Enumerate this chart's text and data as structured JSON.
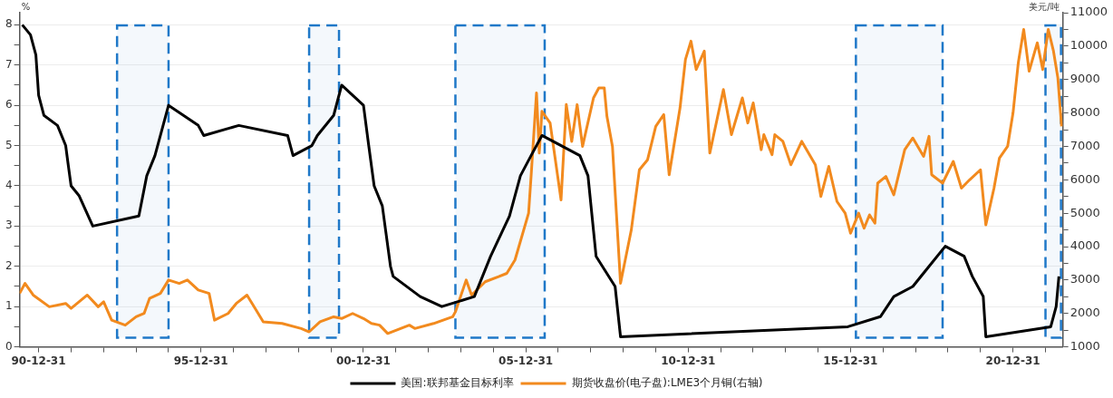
{
  "chart_data": {
    "type": "line",
    "ylabel": "%",
    "y2label": "美元/吨",
    "xlim": [
      "1990-06-01",
      "2022-07-15"
    ],
    "xticks": [
      {
        "value": "1990-12-31",
        "label": "90-12-31"
      },
      {
        "value": "1991-12-31",
        "label": null
      },
      {
        "value": "1992-12-31",
        "label": null
      },
      {
        "value": "1993-12-31",
        "label": null
      },
      {
        "value": "1994-12-31",
        "label": null
      },
      {
        "value": "1995-12-31",
        "label": "95-12-31"
      },
      {
        "value": "1996-12-31",
        "label": null
      },
      {
        "value": "1997-12-31",
        "label": null
      },
      {
        "value": "1998-12-31",
        "label": null
      },
      {
        "value": "1999-12-31",
        "label": null
      },
      {
        "value": "2000-12-31",
        "label": "00-12-31"
      },
      {
        "value": "2001-12-31",
        "label": null
      },
      {
        "value": "2002-12-31",
        "label": null
      },
      {
        "value": "2003-12-31",
        "label": null
      },
      {
        "value": "2004-12-31",
        "label": null
      },
      {
        "value": "2005-12-31",
        "label": "05-12-31"
      },
      {
        "value": "2006-12-31",
        "label": null
      },
      {
        "value": "2007-12-31",
        "label": null
      },
      {
        "value": "2008-12-31",
        "label": null
      },
      {
        "value": "2009-12-31",
        "label": null
      },
      {
        "value": "2010-12-31",
        "label": "10-12-31"
      },
      {
        "value": "2011-12-31",
        "label": null
      },
      {
        "value": "2012-12-31",
        "label": null
      },
      {
        "value": "2013-12-31",
        "label": null
      },
      {
        "value": "2014-12-31",
        "label": null
      },
      {
        "value": "2015-12-31",
        "label": "15-12-31"
      },
      {
        "value": "2016-12-31",
        "label": null
      },
      {
        "value": "2017-12-31",
        "label": null
      },
      {
        "value": "2018-12-31",
        "label": null
      },
      {
        "value": "2019-12-31",
        "label": null
      },
      {
        "value": "2020-12-31",
        "label": "20-12-31"
      },
      {
        "value": "2021-12-31",
        "label": null
      }
    ],
    "ylim": [
      0,
      8.3
    ],
    "yticks": [
      0,
      {
        "value": 0.5,
        "label": null
      },
      1,
      {
        "value": 1.5,
        "label": null
      },
      2,
      {
        "value": 2.5,
        "label": null
      },
      3,
      {
        "value": 3.5,
        "label": null
      },
      4,
      {
        "value": 4.5,
        "label": null
      },
      5,
      {
        "value": 5.5,
        "label": null
      },
      6,
      {
        "value": 6.5,
        "label": null
      },
      7,
      {
        "value": 7.5,
        "label": null
      },
      8
    ],
    "y2lim": [
      1000,
      11000
    ],
    "y2ticks": [
      1000,
      {
        "value": 1500,
        "label": null
      },
      2000,
      {
        "value": 2500,
        "label": null
      },
      3000,
      {
        "value": 3500,
        "label": null
      },
      4000,
      {
        "value": 4500,
        "label": null
      },
      5000,
      {
        "value": 5500,
        "label": null
      },
      6000,
      {
        "value": 6500,
        "label": null
      },
      7000,
      {
        "value": 7500,
        "label": null
      },
      8000,
      {
        "value": 8500,
        "label": null
      },
      9000,
      {
        "value": 9500,
        "label": null
      },
      10000,
      {
        "value": 10500,
        "label": null
      },
      11000
    ],
    "grid": "y",
    "legend": "bottom",
    "marker": "none",
    "line_style": "solid",
    "bands": [
      {
        "axis": "x",
        "from": "1993-06",
        "to": "1995-01",
        "color": "#1f78c8"
      },
      {
        "axis": "x",
        "from": "1999-05",
        "to": "2000-04",
        "color": "#1f78c8"
      },
      {
        "axis": "x",
        "from": "2003-11",
        "to": "2006-08",
        "color": "#1f78c8"
      },
      {
        "axis": "x",
        "from": "2016-03",
        "to": "2018-11",
        "color": "#1f78c8"
      },
      {
        "axis": "x",
        "from": "2022-01",
        "to": "2022-07",
        "color": "#1f78c8"
      }
    ],
    "series": [
      {
        "name": "美国:联邦基金目标利率",
        "color": "#000000",
        "x": [
          "1990-07",
          "1990-10",
          "1990-12",
          "1991-01",
          "1991-03",
          "1991-08",
          "1991-11",
          "1991-12",
          "1992-01",
          "1992-04",
          "1992-09",
          "1994-02",
          "1994-05",
          "1994-08",
          "1995-01",
          "1995-12",
          "1996-02",
          "1997-03",
          "1998-09",
          "1998-11",
          "1999-06",
          "1999-08",
          "2000-02",
          "2000-05",
          "2001-01",
          "2001-03",
          "2001-05",
          "2001-08",
          "2001-11",
          "2001-12",
          "2002-10",
          "2003-06",
          "2004-06",
          "2004-12",
          "2005-07",
          "2005-11",
          "2006-03",
          "2006-07",
          "2007-09",
          "2007-12",
          "2008-03",
          "2008-10",
          "2008-12",
          "2015-12",
          "2016-12",
          "2017-05",
          "2017-12",
          "2018-12",
          "2019-07",
          "2019-10",
          "2020-02",
          "2020-03",
          "2022-03",
          "2022-05",
          "2022-06"
        ],
        "values": [
          8,
          7.75,
          7.25,
          6.25,
          5.75,
          5.5,
          5,
          4.5,
          4,
          3.75,
          3,
          3.25,
          4.25,
          4.75,
          6,
          5.5,
          5.25,
          5.5,
          5.25,
          4.75,
          5,
          5.25,
          5.75,
          6.5,
          6,
          5,
          4,
          3.5,
          2,
          1.75,
          1.25,
          1,
          1.25,
          2.25,
          3.25,
          4.25,
          4.75,
          5.25,
          4.75,
          4.25,
          2.25,
          1.5,
          0.25,
          0.5,
          0.75,
          1.25,
          1.5,
          2.5,
          2.25,
          1.75,
          1.25,
          0.25,
          0.5,
          1,
          1.75
        ]
      },
      {
        "name": "期货收盘价(电子盘):LME3个月铜(右轴)",
        "color": "#f28a1e",
        "axis": "y2",
        "x": [
          "1990-06",
          "1990-08",
          "1990-11",
          "1991-05",
          "1991-11",
          "1992-01",
          "1992-07",
          "1992-11",
          "1993-01",
          "1993-04",
          "1993-09",
          "1994-01",
          "1994-04",
          "1994-06",
          "1994-10",
          "1995-01",
          "1995-05",
          "1995-08",
          "1995-12",
          "1996-04",
          "1996-06",
          "1996-11",
          "1997-02",
          "1997-06",
          "1997-09",
          "1997-12",
          "1998-07",
          "1999-02",
          "1999-05",
          "1999-09",
          "2000-02",
          "2000-05",
          "2000-09",
          "2001-01",
          "2001-04",
          "2001-07",
          "2001-10",
          "2002-06",
          "2002-08",
          "2003-03",
          "2003-10",
          "2003-11",
          "2004-03",
          "2004-05",
          "2004-10",
          "2005-03",
          "2005-06",
          "2005-09",
          "2006-02",
          "2006-03",
          "2006-05",
          "2006-06",
          "2006-07",
          "2006-10",
          "2007-02",
          "2007-04",
          "2007-06",
          "2007-08",
          "2007-10",
          "2008-02",
          "2008-04",
          "2008-06",
          "2008-07",
          "2008-09",
          "2008-12",
          "2009-04",
          "2009-07",
          "2009-10",
          "2010-01",
          "2010-04",
          "2010-06",
          "2010-10",
          "2010-12",
          "2011-02",
          "2011-04",
          "2011-07",
          "2011-09",
          "2012-02",
          "2012-05",
          "2012-09",
          "2012-11",
          "2013-01",
          "2013-04",
          "2013-05",
          "2013-08",
          "2013-09",
          "2013-12",
          "2014-03",
          "2014-07",
          "2014-12",
          "2015-02",
          "2015-05",
          "2015-08",
          "2015-11",
          "2016-01",
          "2016-04",
          "2016-06",
          "2016-08",
          "2016-10",
          "2016-11",
          "2017-02",
          "2017-05",
          "2017-09",
          "2017-12",
          "2018-04",
          "2018-06",
          "2018-07",
          "2018-11",
          "2019-03",
          "2019-06",
          "2019-09",
          "2020-01",
          "2020-03",
          "2020-06",
          "2020-08",
          "2020-11",
          "2021-01",
          "2021-03",
          "2021-05",
          "2021-07",
          "2021-10",
          "2021-12",
          "2022-02",
          "2022-04",
          "2022-05-20",
          "2022-07-01"
        ],
        "values": [
          2600,
          2900,
          2550,
          2200,
          2300,
          2150,
          2550,
          2200,
          2350,
          1800,
          1650,
          1900,
          2000,
          2450,
          2600,
          3000,
          2900,
          3000,
          2700,
          2600,
          1800,
          2000,
          2300,
          2550,
          2150,
          1750,
          1700,
          1550,
          1450,
          1750,
          1900,
          1850,
          2000,
          1850,
          1700,
          1650,
          1400,
          1650,
          1550,
          1700,
          1900,
          2050,
          3000,
          2550,
          2950,
          3100,
          3200,
          3600,
          5000,
          6100,
          8600,
          6800,
          8050,
          7700,
          5400,
          8250,
          7150,
          8250,
          7000,
          8450,
          8750,
          8750,
          7900,
          7000,
          2900,
          4500,
          6300,
          6600,
          7600,
          7950,
          6150,
          8150,
          9600,
          10150,
          9300,
          9850,
          6800,
          8700,
          7350,
          8450,
          7700,
          8300,
          6900,
          7350,
          6750,
          7350,
          7150,
          6450,
          7150,
          6450,
          5500,
          6400,
          5350,
          5000,
          4400,
          5000,
          4550,
          4950,
          4700,
          5900,
          6100,
          5550,
          6900,
          7250,
          6700,
          7300,
          6150,
          5900,
          6550,
          5750,
          6000,
          6300,
          4650,
          5750,
          6650,
          7000,
          8000,
          9500,
          10500,
          9250,
          10100,
          9300,
          10500,
          9850,
          9050,
          7600
        ]
      }
    ]
  }
}
